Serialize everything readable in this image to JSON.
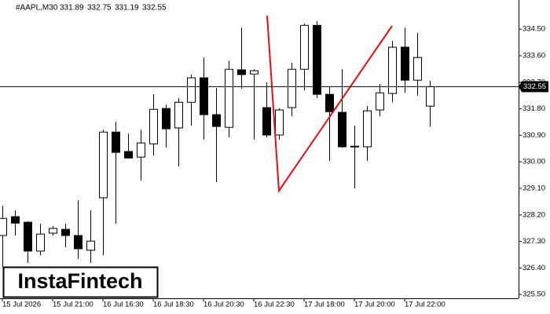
{
  "chart_data": {
    "type": "candlestick",
    "title": "#AAPL,M30",
    "watermark": "InstaFintech",
    "categories": [
      "15 Jul 2026",
      null,
      null,
      null,
      "15 Jul 21:00",
      null,
      null,
      null,
      "16 Jul 16:30",
      null,
      null,
      null,
      "16 Jul 18:30",
      null,
      null,
      null,
      "16 Jul 20:30",
      null,
      null,
      null,
      "16 Jul 22:30",
      null,
      null,
      null,
      "17 Jul 18:00",
      null,
      null,
      null,
      "17 Jul 20:00",
      null,
      null,
      null,
      "17 Jul 22:00",
      null,
      null
    ],
    "open": [
      327.5,
      328.14,
      327.95,
      326.97,
      327.58,
      327.71,
      327.5,
      327.0,
      328.78,
      331.01,
      330.35,
      330.16,
      330.61,
      331.81,
      331.15,
      332.02,
      332.85,
      331.6,
      331.17,
      333.12,
      332.98,
      331.84,
      330.91,
      331.84,
      333.14,
      334.63,
      332.29,
      331.68,
      330.51,
      330.51,
      331.76,
      332.32,
      333.89,
      332.77,
      331.89
    ],
    "high": [
      328.51,
      328.35,
      327.98,
      327.9,
      327.82,
      327.9,
      328.7,
      328.35,
      331.09,
      331.36,
      330.96,
      331.09,
      332.29,
      331.94,
      332.16,
      332.96,
      333.54,
      332.5,
      333.43,
      334.55,
      333.14,
      332.69,
      331.81,
      333.36,
      334.69,
      334.77,
      332.56,
      333.14,
      331.23,
      331.89,
      332.64,
      334.1,
      334.55,
      334.37,
      332.75
    ],
    "low": [
      326.43,
      327.5,
      326.57,
      326.83,
      327.5,
      327.1,
      326.7,
      326.57,
      326.83,
      327.9,
      330.16,
      329.36,
      330.21,
      330.48,
      329.84,
      331.23,
      330.75,
      329.31,
      330.83,
      332.48,
      330.75,
      330.83,
      330.75,
      331.54,
      332.42,
      332.16,
      330.03,
      330.48,
      329.1,
      330.03,
      331.54,
      332.02,
      332.34,
      332.24,
      331.19
    ],
    "close": [
      328.08,
      327.92,
      326.97,
      327.55,
      327.74,
      327.5,
      327.05,
      327.31,
      331.01,
      330.32,
      330.13,
      330.64,
      331.78,
      331.12,
      332.02,
      332.85,
      331.6,
      331.2,
      333.14,
      332.96,
      333.09,
      330.91,
      331.76,
      333.14,
      334.63,
      332.29,
      331.7,
      330.51,
      330.53,
      331.73,
      332.34,
      333.89,
      332.77,
      333.54,
      332.55
    ],
    "ylim": [
      325.37,
      335.49
    ],
    "yticks": [
      {
        "value": 334.5,
        "label": "334.50"
      },
      {
        "value": 333.6,
        "label": "333.60"
      },
      {
        "value": 332.7,
        "label": "332.70"
      },
      {
        "value": 331.8,
        "label": "331.80"
      },
      {
        "value": 330.9,
        "label": "330.90"
      },
      {
        "value": 330,
        "label": "330.00"
      },
      {
        "value": 329.1,
        "label": "329.10"
      },
      {
        "value": 328.2,
        "label": "328.20"
      },
      {
        "value": 327.3,
        "label": "327.30"
      },
      {
        "value": 326.4,
        "label": "326.40"
      },
      {
        "value": 325.5,
        "label": "325.50"
      }
    ],
    "up_color": "#ffffff",
    "down_color": "#000000",
    "pattern_color": "#e01010"
  }
}
